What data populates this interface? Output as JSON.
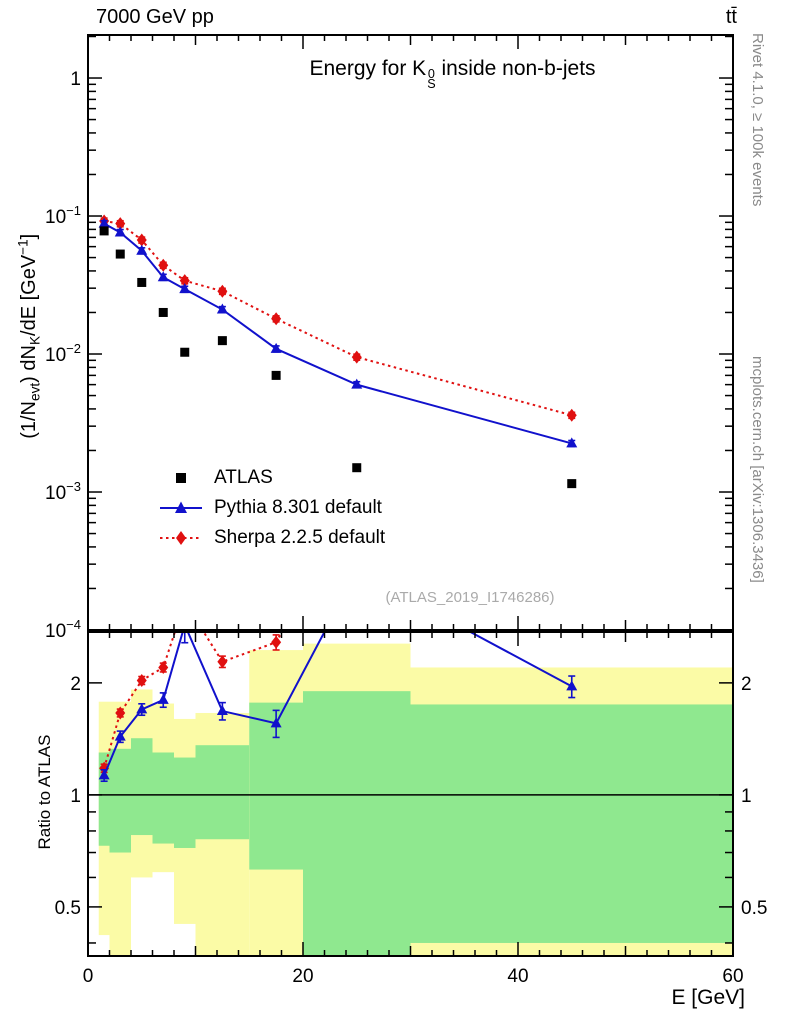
{
  "header": {
    "left": "7000 GeV pp",
    "right": "tt̄"
  },
  "side_notes": {
    "top": "Rivet 4.1.0, ≥ 100k events",
    "bottom": "mcplots.cern.ch [arXiv:1306.3436]"
  },
  "watermark": "(ATLAS_2019_I1746286)",
  "chart_data": {
    "type": "line",
    "title_parts": [
      {
        "t": "Energy for K"
      },
      {
        "s": "stack",
        "top": "0",
        "bot": "S"
      },
      {
        "t": " inside non-b-jets"
      }
    ],
    "xlabel": "E [GeV]",
    "ylabel_parts": [
      {
        "t": "(1/N"
      },
      {
        "t": "evt",
        "s": "sub"
      },
      {
        "t": ") dN"
      },
      {
        "t": "K",
        "s": "sub"
      },
      {
        "t": "/dE [GeV"
      },
      {
        "t": "−1",
        "s": "sup"
      },
      {
        "t": "]"
      }
    ],
    "ratio_ylabel": "Ratio to ATLAS",
    "xlim": [
      0,
      60
    ],
    "ylim_main": [
      0.0001,
      2.05
    ],
    "ylim_ratio": [
      0.369,
      2.74
    ],
    "xticks": [
      {
        "v": 0,
        "text": "0"
      },
      {
        "v": 20,
        "text": "20"
      },
      {
        "v": 40,
        "text": "40"
      },
      {
        "v": 60,
        "text": "60"
      }
    ],
    "yticks_main": [
      {
        "v": 1,
        "text": "1"
      },
      {
        "v": 0.1,
        "text": "10^-1"
      },
      {
        "v": 0.01,
        "text": "10^-2"
      },
      {
        "v": 0.001,
        "text": "10^-3"
      },
      {
        "v": 0.0001,
        "text": "10^-4"
      }
    ],
    "yticks_ratio": [
      {
        "v": 0.5,
        "text": "0.5"
      },
      {
        "v": 1,
        "text": "1"
      },
      {
        "v": 2,
        "text": "2"
      }
    ],
    "bin_edges": [
      1,
      2,
      4,
      6,
      8,
      10,
      15,
      20,
      30,
      60
    ],
    "x_mid": [
      1.5,
      3,
      5,
      7,
      9,
      12.5,
      17.5,
      25,
      45
    ],
    "err_frac_main": 0.05,
    "series": [
      {
        "name": "ATLAS",
        "role": "reference-data",
        "color": "#000000",
        "marker": "square",
        "line": "none",
        "values": [
          0.078,
          0.053,
          0.033,
          0.02,
          0.0103,
          0.0125,
          0.007,
          0.0015,
          0.00115
        ]
      },
      {
        "name": "Pythia 8.301 default",
        "color": "#1111cc",
        "marker": "triangle",
        "line": "solid",
        "values": [
          0.088,
          0.076,
          0.056,
          0.036,
          0.0295,
          0.021,
          0.0109,
          0.006,
          0.00225
        ],
        "ratio_err": [
          0.04,
          0.05,
          0.06,
          0.08,
          0.3,
          0.09,
          0.13,
          0.5,
          0.13
        ]
      },
      {
        "name": "Sherpa 2.2.5 default",
        "color": "#e01010",
        "marker": "diamond",
        "line": "dotted",
        "values": [
          0.092,
          0.088,
          0.067,
          0.044,
          0.034,
          0.0285,
          0.018,
          0.0095,
          0.0036
        ],
        "ratio_err": [
          0.03,
          0.04,
          0.05,
          0.06,
          0.12,
          0.08,
          0.12,
          0.3,
          0.2
        ]
      }
    ],
    "bands": {
      "yellow_color": "#fbfba6",
      "green_color": "#8fe88f",
      "bins": [
        {
          "x0": 1,
          "x1": 2,
          "yellow": [
            0.42,
            1.78
          ],
          "green": [
            0.73,
            1.3
          ]
        },
        {
          "x0": 2,
          "x1": 4,
          "yellow": [
            0.36,
            1.78
          ],
          "green": [
            0.7,
            1.33
          ]
        },
        {
          "x0": 4,
          "x1": 6,
          "yellow": [
            0.6,
            1.92
          ],
          "green": [
            0.78,
            1.42
          ]
        },
        {
          "x0": 6,
          "x1": 8,
          "yellow": [
            0.62,
            1.76
          ],
          "green": [
            0.74,
            1.3
          ]
        },
        {
          "x0": 8,
          "x1": 10,
          "yellow": [
            0.45,
            1.6
          ],
          "green": [
            0.72,
            1.26
          ]
        },
        {
          "x0": 10,
          "x1": 15,
          "yellow": [
            0.37,
            1.66
          ],
          "green": [
            0.76,
            1.36
          ]
        },
        {
          "x0": 15,
          "x1": 20,
          "yellow": [
            0.36,
            2.45
          ],
          "green": [
            0.63,
            1.77
          ]
        },
        {
          "x0": 20,
          "x1": 30,
          "yellow": [
            0.33,
            2.55
          ],
          "green": [
            0.36,
            1.9
          ]
        },
        {
          "x0": 30,
          "x1": 60,
          "yellow": [
            0.33,
            2.2
          ],
          "green": [
            0.4,
            1.75
          ]
        }
      ]
    }
  }
}
